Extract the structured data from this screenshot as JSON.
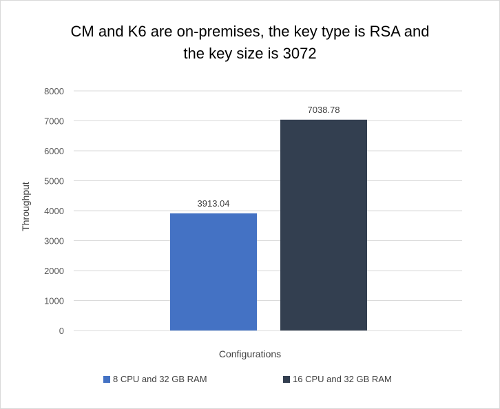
{
  "chart_data": {
    "type": "bar",
    "title_lines": [
      "CM and K6 are on-premises, the key type is RSA and",
      "the key size is 3072"
    ],
    "xlabel": "Configurations",
    "ylabel": "Throughput",
    "ylim": [
      0,
      8000
    ],
    "yticks": [
      "0",
      "1000",
      "2000",
      "3000",
      "4000",
      "5000",
      "6000",
      "7000",
      "8000"
    ],
    "grid": true,
    "legend_position": "bottom",
    "series": [
      {
        "name": "8 CPU and 32 GB RAM",
        "values": [
          3913.04
        ],
        "label": "3913.04",
        "color": "#4472C4"
      },
      {
        "name": "16 CPU and 32 GB RAM",
        "values": [
          7038.78
        ],
        "label": "7038.78",
        "color": "#333F50"
      }
    ]
  }
}
